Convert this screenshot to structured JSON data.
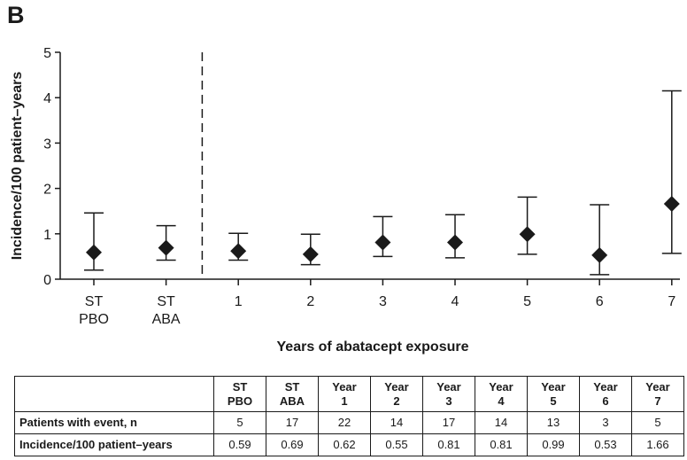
{
  "panel_label": "B",
  "chart_data": {
    "type": "scatter",
    "xlabel": "Years of abatacept exposure",
    "ylabel": "Incidence/100 patient–years",
    "ylim": [
      0,
      5
    ],
    "yticks": [
      "0",
      "1",
      "2",
      "3",
      "4",
      "5"
    ],
    "categories": [
      {
        "line1": "ST",
        "line2": "PBO"
      },
      {
        "line1": "ST",
        "line2": "ABA"
      },
      {
        "line1": "1",
        "line2": ""
      },
      {
        "line1": "2",
        "line2": ""
      },
      {
        "line1": "3",
        "line2": ""
      },
      {
        "line1": "4",
        "line2": ""
      },
      {
        "line1": "5",
        "line2": ""
      },
      {
        "line1": "6",
        "line2": ""
      },
      {
        "line1": "7",
        "line2": ""
      }
    ],
    "values": [
      0.59,
      0.69,
      0.62,
      0.55,
      0.81,
      0.81,
      0.99,
      0.53,
      1.66
    ],
    "ci_lower": [
      0.2,
      0.42,
      0.42,
      0.32,
      0.5,
      0.47,
      0.55,
      0.1,
      0.57
    ],
    "ci_upper": [
      1.46,
      1.18,
      1.01,
      0.99,
      1.38,
      1.42,
      1.81,
      1.64,
      4.15
    ],
    "divider_after_index": 1,
    "grid": false
  },
  "table": {
    "header_cells": [
      {
        "line1": "ST",
        "line2": "PBO"
      },
      {
        "line1": "ST",
        "line2": "ABA"
      },
      {
        "line1": "Year",
        "line2": "1"
      },
      {
        "line1": "Year",
        "line2": "2"
      },
      {
        "line1": "Year",
        "line2": "3"
      },
      {
        "line1": "Year",
        "line2": "4"
      },
      {
        "line1": "Year",
        "line2": "5"
      },
      {
        "line1": "Year",
        "line2": "6"
      },
      {
        "line1": "Year",
        "line2": "7"
      }
    ],
    "rows": [
      {
        "label": "Patients with event, n",
        "cells": [
          "5",
          "17",
          "22",
          "14",
          "17",
          "14",
          "13",
          "3",
          "5"
        ]
      },
      {
        "label": "Incidence/100 patient–years",
        "cells": [
          "0.59",
          "0.69",
          "0.62",
          "0.55",
          "0.81",
          "0.81",
          "0.99",
          "0.53",
          "1.66"
        ]
      }
    ]
  }
}
